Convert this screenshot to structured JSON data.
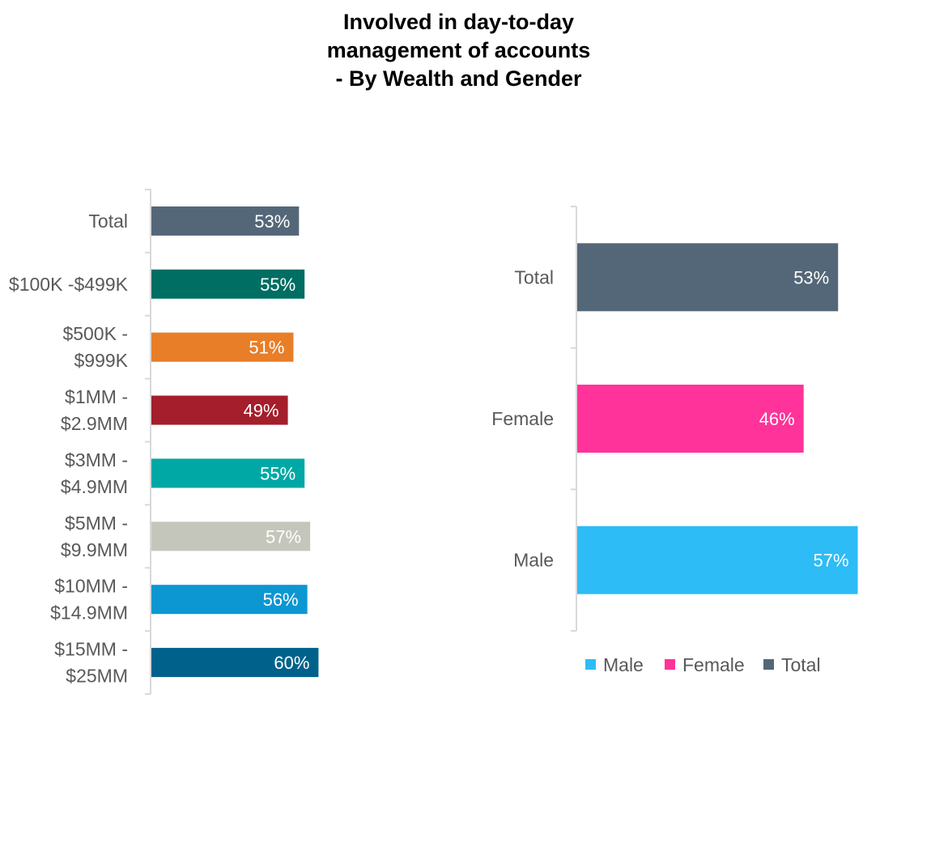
{
  "title_lines": [
    "Involved in day-to-day",
    "management of accounts",
    "- By Wealth and Gender"
  ],
  "chart_data": [
    {
      "type": "bar",
      "orientation": "horizontal",
      "categories": [
        [
          "Total"
        ],
        [
          "$100K -$499K"
        ],
        [
          "$500K -",
          "$999K"
        ],
        [
          "$1MM -",
          "$2.9MM"
        ],
        [
          "$3MM -",
          "$4.9MM"
        ],
        [
          "$5MM -",
          "$9.9MM"
        ],
        [
          "$10MM -",
          "$14.9MM"
        ],
        [
          "$15MM -",
          "$25MM"
        ]
      ],
      "values": [
        53,
        55,
        51,
        49,
        55,
        57,
        56,
        60
      ],
      "value_labels": [
        "53%",
        "55%",
        "51%",
        "49%",
        "55%",
        "57%",
        "56%",
        "60%"
      ],
      "colors": [
        "#546778",
        "#006e63",
        "#e87e27",
        "#a41e2c",
        "#00a8a5",
        "#c5c6bb",
        "#0c97d2",
        "#00628b"
      ],
      "xlim": [
        0,
        100
      ],
      "grid": false
    },
    {
      "type": "bar",
      "orientation": "horizontal",
      "categories": [
        [
          "Total"
        ],
        [
          "Female"
        ],
        [
          "Male"
        ]
      ],
      "values": [
        53,
        46,
        57
      ],
      "value_labels": [
        "53%",
        "46%",
        "57%"
      ],
      "colors": [
        "#546778",
        "#ff3399",
        "#2dbcf5"
      ],
      "xlim": [
        0,
        100
      ],
      "grid": false,
      "legend": {
        "position": "bottom",
        "entries": [
          {
            "label": "Male",
            "color": "#2dbcf5"
          },
          {
            "label": "Female",
            "color": "#ff3399"
          },
          {
            "label": "Total",
            "color": "#546778"
          }
        ]
      }
    }
  ]
}
